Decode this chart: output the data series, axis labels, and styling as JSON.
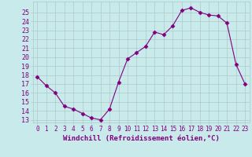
{
  "x": [
    0,
    1,
    2,
    3,
    4,
    5,
    6,
    7,
    8,
    9,
    10,
    11,
    12,
    13,
    14,
    15,
    16,
    17,
    18,
    19,
    20,
    21,
    22,
    23
  ],
  "y": [
    17.8,
    16.8,
    16.0,
    14.5,
    14.2,
    13.7,
    13.2,
    13.0,
    14.2,
    17.2,
    19.8,
    20.5,
    21.2,
    22.8,
    22.5,
    23.5,
    25.2,
    25.5,
    25.0,
    24.7,
    24.6,
    23.8,
    19.2,
    17.0
  ],
  "line_color": "#800080",
  "marker": "D",
  "marker_size": 2.5,
  "bg_color": "#c8eaea",
  "grid_color": "#b0c8c8",
  "xlabel": "Windchill (Refroidissement éolien,°C)",
  "xlabel_color": "#800080",
  "xlabel_fontsize": 6.5,
  "tick_color": "#800080",
  "tick_fontsize": 6,
  "ylim": [
    13,
    26
  ],
  "xlim": [
    -0.5,
    23.5
  ],
  "yticks": [
    13,
    14,
    15,
    16,
    17,
    18,
    19,
    20,
    21,
    22,
    23,
    24,
    25
  ],
  "xtick_labels": [
    "0",
    "1",
    "2",
    "3",
    "4",
    "5",
    "6",
    "7",
    "8",
    "9",
    "10",
    "11",
    "12",
    "13",
    "14",
    "15",
    "16",
    "17",
    "18",
    "19",
    "20",
    "21",
    "22",
    "23"
  ]
}
